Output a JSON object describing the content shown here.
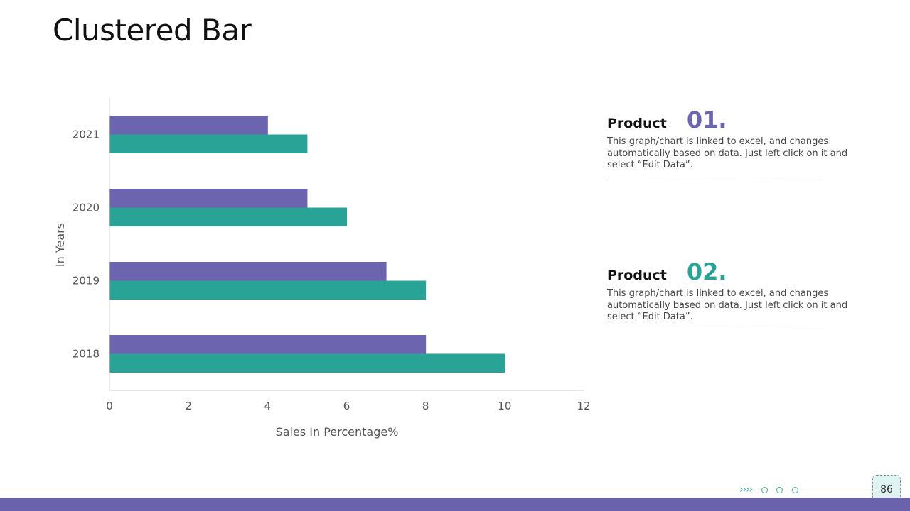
{
  "slide": {
    "title": "Clustered Bar",
    "page_number": "86"
  },
  "chart_data": {
    "type": "bar",
    "orientation": "horizontal",
    "categories": [
      "2018",
      "2019",
      "2020",
      "2021"
    ],
    "series": [
      {
        "values": [
          8,
          7,
          5,
          4
        ],
        "color": "#6b64ae"
      },
      {
        "values": [
          10,
          8,
          6,
          5
        ],
        "color": "#2aa397"
      }
    ],
    "xlabel": "Sales In Percentage%",
    "ylabel": "In Years",
    "xlim": [
      0,
      12
    ],
    "xticks": [
      "0",
      "2",
      "4",
      "6",
      "8",
      "10",
      "12"
    ],
    "grid": false,
    "legend": "none"
  },
  "products": [
    {
      "label": "Product",
      "number": "01.",
      "color": "#6b64ae",
      "description": "This graph/chart is linked to excel, and changes automatically based on data. Just left click on it and select “Edit Data”."
    },
    {
      "label": "Product",
      "number": "02.",
      "color": "#2aa397",
      "description": "This graph/chart is linked to excel, and changes automatically based on data. Just left click on it and select “Edit Data”."
    }
  ],
  "footer": {
    "nav_arrows": "››››"
  }
}
